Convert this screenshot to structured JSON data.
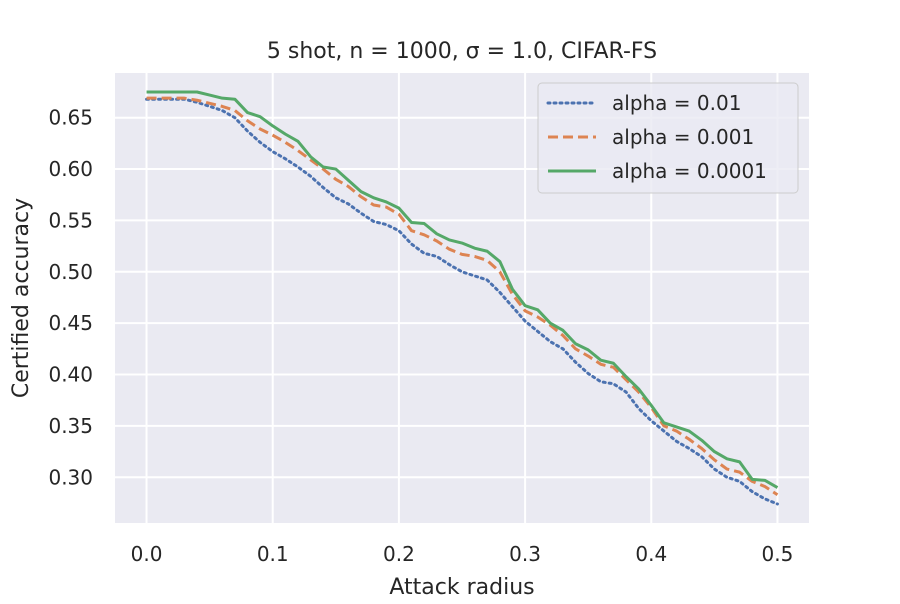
{
  "chart_data": {
    "type": "line",
    "title": "5 shot, n = 1000, σ = 1.0, CIFAR-FS",
    "xlabel": "Attack radius",
    "ylabel": "Certified accuracy",
    "xlim": [
      -0.025,
      0.525
    ],
    "ylim": [
      0.2555,
      0.6935
    ],
    "xticks": [
      0.0,
      0.1,
      0.2,
      0.3,
      0.4,
      0.5
    ],
    "xtick_labels": [
      "0.0",
      "0.1",
      "0.2",
      "0.3",
      "0.4",
      "0.5"
    ],
    "yticks": [
      0.3,
      0.35,
      0.4,
      0.45,
      0.5,
      0.55,
      0.6,
      0.65
    ],
    "ytick_labels": [
      "0.30",
      "0.35",
      "0.40",
      "0.45",
      "0.50",
      "0.55",
      "0.60",
      "0.65"
    ],
    "grid": true,
    "legend_position": "top-right",
    "background": "#EAEAF2",
    "series": [
      {
        "name": "alpha = 0.01",
        "color": "#4C72B0",
        "style": "dotted",
        "x": [
          0.0,
          0.01,
          0.02,
          0.03,
          0.04,
          0.05,
          0.06,
          0.07,
          0.08,
          0.09,
          0.1,
          0.11,
          0.12,
          0.13,
          0.14,
          0.15,
          0.16,
          0.17,
          0.18,
          0.19,
          0.2,
          0.21,
          0.22,
          0.23,
          0.24,
          0.25,
          0.26,
          0.27,
          0.28,
          0.29,
          0.3,
          0.31,
          0.32,
          0.33,
          0.34,
          0.35,
          0.36,
          0.37,
          0.38,
          0.39,
          0.4,
          0.41,
          0.42,
          0.43,
          0.44,
          0.45,
          0.46,
          0.47,
          0.48,
          0.49,
          0.5
        ],
        "y": [
          0.668,
          0.668,
          0.668,
          0.668,
          0.665,
          0.661,
          0.657,
          0.65,
          0.637,
          0.626,
          0.617,
          0.61,
          0.602,
          0.593,
          0.582,
          0.572,
          0.566,
          0.557,
          0.549,
          0.546,
          0.54,
          0.527,
          0.518,
          0.515,
          0.507,
          0.5,
          0.496,
          0.492,
          0.48,
          0.466,
          0.452,
          0.442,
          0.432,
          0.425,
          0.412,
          0.401,
          0.393,
          0.391,
          0.383,
          0.367,
          0.355,
          0.345,
          0.335,
          0.328,
          0.32,
          0.308,
          0.3,
          0.296,
          0.286,
          0.279,
          0.274
        ]
      },
      {
        "name": "alpha = 0.001",
        "color": "#DD8452",
        "style": "dashed",
        "x": [
          0.0,
          0.01,
          0.02,
          0.03,
          0.04,
          0.05,
          0.06,
          0.07,
          0.08,
          0.09,
          0.1,
          0.11,
          0.12,
          0.13,
          0.14,
          0.15,
          0.16,
          0.17,
          0.18,
          0.19,
          0.2,
          0.21,
          0.22,
          0.23,
          0.24,
          0.25,
          0.26,
          0.27,
          0.28,
          0.29,
          0.3,
          0.31,
          0.32,
          0.33,
          0.34,
          0.35,
          0.36,
          0.37,
          0.38,
          0.39,
          0.4,
          0.41,
          0.42,
          0.43,
          0.44,
          0.45,
          0.46,
          0.47,
          0.48,
          0.49,
          0.5
        ],
        "y": [
          0.669,
          0.669,
          0.669,
          0.669,
          0.667,
          0.664,
          0.661,
          0.657,
          0.647,
          0.639,
          0.633,
          0.626,
          0.618,
          0.609,
          0.6,
          0.59,
          0.583,
          0.573,
          0.565,
          0.563,
          0.556,
          0.54,
          0.536,
          0.53,
          0.522,
          0.517,
          0.515,
          0.511,
          0.5,
          0.478,
          0.462,
          0.456,
          0.448,
          0.438,
          0.425,
          0.418,
          0.41,
          0.407,
          0.395,
          0.383,
          0.368,
          0.35,
          0.345,
          0.337,
          0.328,
          0.317,
          0.308,
          0.305,
          0.296,
          0.291,
          0.283
        ]
      },
      {
        "name": "alpha = 0.0001",
        "color": "#55A868",
        "style": "solid",
        "x": [
          0.0,
          0.01,
          0.02,
          0.03,
          0.04,
          0.05,
          0.06,
          0.07,
          0.08,
          0.09,
          0.1,
          0.11,
          0.12,
          0.13,
          0.14,
          0.15,
          0.16,
          0.17,
          0.18,
          0.19,
          0.2,
          0.21,
          0.22,
          0.23,
          0.24,
          0.25,
          0.26,
          0.27,
          0.28,
          0.29,
          0.3,
          0.31,
          0.32,
          0.33,
          0.34,
          0.35,
          0.36,
          0.37,
          0.38,
          0.39,
          0.4,
          0.41,
          0.42,
          0.43,
          0.44,
          0.45,
          0.46,
          0.47,
          0.48,
          0.49,
          0.5
        ],
        "y": [
          0.675,
          0.675,
          0.675,
          0.675,
          0.675,
          0.672,
          0.669,
          0.668,
          0.655,
          0.651,
          0.642,
          0.634,
          0.627,
          0.612,
          0.602,
          0.6,
          0.589,
          0.578,
          0.572,
          0.568,
          0.562,
          0.548,
          0.547,
          0.537,
          0.531,
          0.528,
          0.523,
          0.52,
          0.51,
          0.483,
          0.467,
          0.463,
          0.45,
          0.443,
          0.43,
          0.424,
          0.414,
          0.411,
          0.398,
          0.386,
          0.37,
          0.353,
          0.349,
          0.345,
          0.336,
          0.325,
          0.318,
          0.315,
          0.298,
          0.297,
          0.29
        ]
      }
    ]
  }
}
